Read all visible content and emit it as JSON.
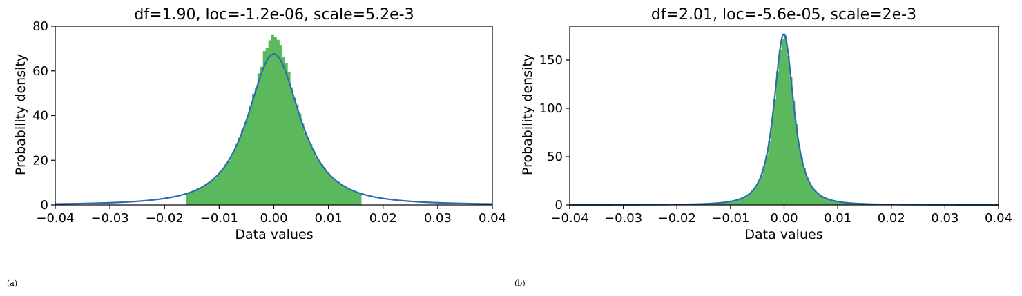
{
  "figure": {
    "panel_labels": [
      "(a)",
      "(b)"
    ]
  },
  "chart_data": [
    {
      "type": "bar",
      "subtype": "histogram-with-density-curve",
      "title": "df=1.90, loc=-1.2e-06, scale=5.2e-3",
      "xlabel": "Data values",
      "ylabel": "Probability density",
      "xlim": [
        -0.04,
        0.04
      ],
      "ylim": [
        0,
        80
      ],
      "xticks": [
        -0.04,
        -0.03,
        -0.02,
        -0.01,
        0.0,
        0.01,
        0.02,
        0.03,
        0.04
      ],
      "xtick_labels": [
        "−0.04",
        "−0.03",
        "−0.02",
        "−0.01",
        "0.00",
        "0.01",
        "0.02",
        "0.03",
        "0.04"
      ],
      "yticks": [
        0,
        20,
        40,
        60,
        80
      ],
      "ytick_labels": [
        "0",
        "20",
        "40",
        "60",
        "80"
      ],
      "grid": false,
      "curve": {
        "distribution": "student-t",
        "df": 1.9,
        "loc": -1.2e-06,
        "scale": 0.0052
      },
      "histogram": {
        "bin_range": [
          -0.016,
          0.016
        ],
        "bin_width": 0.0005,
        "peak_density": 76
      },
      "colors": {
        "bars": "#5cb85c",
        "curve": "#2b6cb0"
      }
    },
    {
      "type": "bar",
      "subtype": "histogram-with-density-curve",
      "title": "df=2.01, loc=-5.6e-05, scale=2e-3",
      "xlabel": "Data values",
      "ylabel": "Probability density",
      "xlim": [
        -0.04,
        0.04
      ],
      "ylim": [
        0,
        185
      ],
      "xticks": [
        -0.04,
        -0.03,
        -0.02,
        -0.01,
        0.0,
        0.01,
        0.02,
        0.03,
        0.04
      ],
      "xtick_labels": [
        "−0.04",
        "−0.03",
        "−0.02",
        "−0.01",
        "0.00",
        "0.01",
        "0.02",
        "0.03",
        "0.04"
      ],
      "yticks": [
        0,
        50,
        100,
        150
      ],
      "ytick_labels": [
        "0",
        "50",
        "100",
        "150"
      ],
      "grid": false,
      "curve": {
        "distribution": "student-t",
        "df": 2.01,
        "loc": -5.6e-05,
        "scale": 0.002
      },
      "histogram": {
        "bin_range": [
          -0.016,
          0.016
        ],
        "bin_width": 0.0005,
        "peak_density": 176
      },
      "colors": {
        "bars": "#5cb85c",
        "curve": "#2b6cb0"
      }
    }
  ]
}
